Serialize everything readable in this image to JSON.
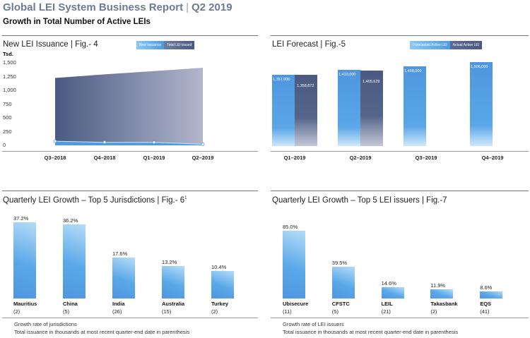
{
  "header": {
    "title": "Global LEI System Business Report",
    "period": "Q2 2019",
    "subtitle": "Growth in Total Number of Active LEIs"
  },
  "colors": {
    "light_blue": "#5aa8e8",
    "dark_navy": "#4a5a80",
    "title_gray": "#6b7a96"
  },
  "chart_data": [
    {
      "type": "area",
      "title": "New LEI Issuance  |  Fig.- 4",
      "ylabel": "Tsd.",
      "yticks": [
        "1,500",
        "1,250",
        "1,000",
        "750",
        "500",
        "250",
        "0"
      ],
      "ylim": [
        0,
        1500
      ],
      "categories": [
        "Q3–2018",
        "Q4–2018",
        "Q1–2019",
        "Q2–2019"
      ],
      "legend": [
        "New issuance",
        "Total LEI issued"
      ],
      "series": [
        {
          "name": "New issuance",
          "values": [
            75,
            55,
            55,
            20
          ]
        },
        {
          "name": "Total LEI issued",
          "values": [
            1225,
            1290,
            1350,
            1410
          ]
        }
      ]
    },
    {
      "type": "bar",
      "title": "LEI Forecast  |  Fig.-5",
      "categories": [
        "Q1–2019",
        "Q2–2019",
        "Q3–2019",
        "Q4–2019"
      ],
      "legend": [
        "Forecasted Active LEI",
        "Actual Active LEI"
      ],
      "series": [
        {
          "name": "Forecasted Active LEI",
          "values": [
            1357000,
            1410000,
            1458000,
            1506000
          ],
          "labels": [
            "1,357,000",
            "1,410,000",
            "1,458,000",
            "1,506,000"
          ]
        },
        {
          "name": "Actual Active LEI",
          "values": [
            1358872,
            1405629,
            null,
            null
          ],
          "labels": [
            "1,358,872",
            "1,405,629"
          ]
        }
      ]
    },
    {
      "type": "bar",
      "title": "Quarterly LEI Growth – Top 5 Jurisdictions  |  Fig.- 6",
      "title_sup": "1",
      "categories": [
        "Mauritius",
        "China",
        "India",
        "Australia",
        "Turkey"
      ],
      "counts": [
        "(2)",
        "(5)",
        "(26)",
        "(15)",
        "(2)"
      ],
      "values": [
        37.2,
        36.2,
        17.6,
        13.2,
        10.4
      ],
      "labels": [
        "37.2%",
        "36.2%",
        "17.6%",
        "13.2%",
        "10.4%"
      ],
      "notes": [
        "Growth rate of jurisdictions",
        "Total issuance in thousands at most recent quarter-end date in parenthesis"
      ]
    },
    {
      "type": "bar",
      "title": "Quarterly LEI Growth – Top 5 LEI issuers  |  Fig.-7",
      "categories": [
        "Ubisecure",
        "CFSTC",
        "LEIL",
        "Takasbank",
        "EQS"
      ],
      "counts": [
        "(11)",
        "(5)",
        "(21)",
        "(2)",
        "(41)"
      ],
      "values": [
        85.0,
        39.5,
        14.6,
        11.9,
        8.6
      ],
      "labels": [
        "85.0%",
        "39.5%",
        "14.6%",
        "11.9%",
        "8.6%"
      ],
      "notes": [
        "Growth rate of LEI issuers",
        "Total issuance in thousands at most recent quarter-end date in parenthesis"
      ]
    }
  ]
}
